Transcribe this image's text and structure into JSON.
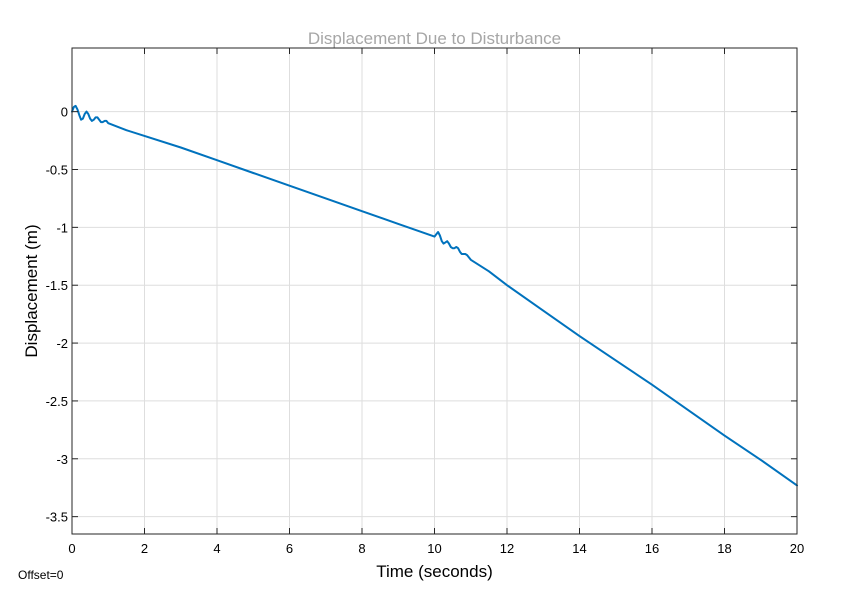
{
  "chart_data": {
    "type": "line",
    "title": "Displacement Due to Disturbance",
    "xlabel": "Time (seconds)",
    "ylabel": "Displacement (m)",
    "xlim": [
      0,
      20
    ],
    "ylim": [
      -3.65,
      0.55
    ],
    "xticks": [
      0,
      2,
      4,
      6,
      8,
      10,
      12,
      14,
      16,
      18,
      20
    ],
    "yticks": [
      0,
      -0.5,
      -1,
      -1.5,
      -2,
      -2.5,
      -3,
      -3.5
    ],
    "xtick_labels": [
      "0",
      "2",
      "4",
      "6",
      "8",
      "10",
      "12",
      "14",
      "16",
      "18",
      "20"
    ],
    "ytick_labels": [
      "0",
      "-0.5",
      "-1",
      "-1.5",
      "-2",
      "-2.5",
      "-3",
      "-3.5"
    ],
    "grid": true,
    "series": [
      {
        "color": "#0072bd",
        "x": [
          0,
          0.05,
          0.1,
          0.15,
          0.2,
          0.25,
          0.3,
          0.35,
          0.4,
          0.45,
          0.5,
          0.55,
          0.6,
          0.65,
          0.7,
          0.75,
          0.8,
          0.85,
          0.9,
          0.95,
          1.0,
          1.5,
          2,
          3,
          4,
          5,
          6,
          7,
          8,
          9,
          10,
          10.05,
          10.1,
          10.15,
          10.2,
          10.25,
          10.3,
          10.35,
          10.4,
          10.45,
          10.5,
          10.55,
          10.6,
          10.65,
          10.7,
          10.75,
          10.8,
          10.85,
          10.9,
          10.95,
          11,
          11.5,
          12,
          13,
          14,
          15,
          16,
          17,
          18,
          19,
          20
        ],
        "y": [
          0,
          0.04,
          0.05,
          0.02,
          -0.03,
          -0.07,
          -0.06,
          -0.02,
          0.0,
          -0.02,
          -0.06,
          -0.08,
          -0.07,
          -0.05,
          -0.05,
          -0.07,
          -0.09,
          -0.09,
          -0.08,
          -0.08,
          -0.1,
          -0.16,
          -0.21,
          -0.31,
          -0.42,
          -0.53,
          -0.64,
          -0.75,
          -0.86,
          -0.97,
          -1.08,
          -1.06,
          -1.04,
          -1.07,
          -1.12,
          -1.14,
          -1.13,
          -1.12,
          -1.14,
          -1.17,
          -1.18,
          -1.18,
          -1.17,
          -1.18,
          -1.21,
          -1.23,
          -1.23,
          -1.23,
          -1.24,
          -1.26,
          -1.28,
          -1.38,
          -1.5,
          -1.72,
          -1.94,
          -2.15,
          -2.36,
          -2.58,
          -2.8,
          -3.01,
          -3.23
        ]
      }
    ]
  },
  "footer": {
    "offset_label": "Offset=0"
  }
}
